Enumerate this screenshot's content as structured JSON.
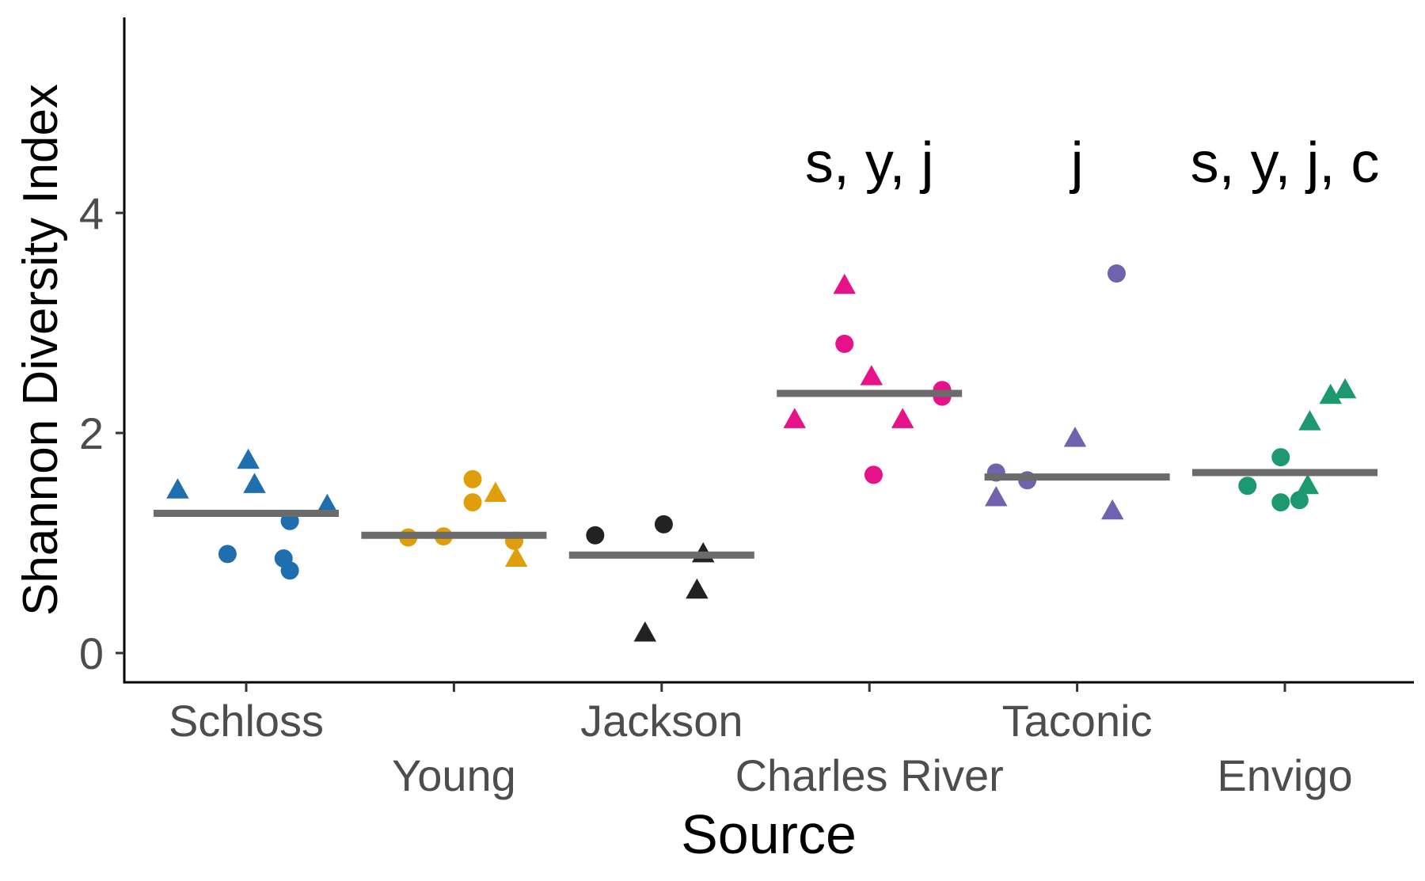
{
  "chart_data": {
    "type": "scatter",
    "xlabel": "Source",
    "ylabel": "Shannon Diversity Index",
    "ylim": [
      -0.25,
      5.75
    ],
    "yticks": [
      0,
      2,
      4
    ],
    "grid": false,
    "legend": "none",
    "marker_shapes": {
      "circle": "circle",
      "triangle": "triangle"
    },
    "categories": [
      "Schloss",
      "Young",
      "Jackson",
      "Charles River",
      "Taconic",
      "Envigo"
    ],
    "groups": [
      {
        "name": "Schloss",
        "color": "#1f6fb0",
        "median": 1.27,
        "annotation": "",
        "points": [
          {
            "x": -0.33,
            "y": 1.48,
            "shape": "triangle"
          },
          {
            "x": 0.01,
            "y": 1.75,
            "shape": "triangle"
          },
          {
            "x": 0.04,
            "y": 1.53,
            "shape": "triangle"
          },
          {
            "x": 0.39,
            "y": 1.34,
            "shape": "triangle"
          },
          {
            "x": -0.09,
            "y": 0.9,
            "shape": "circle"
          },
          {
            "x": 0.21,
            "y": 0.75,
            "shape": "circle"
          },
          {
            "x": 0.18,
            "y": 0.86,
            "shape": "circle"
          },
          {
            "x": 0.21,
            "y": 1.2,
            "shape": "circle"
          }
        ]
      },
      {
        "name": "Young",
        "color": "#e09f0a",
        "median": 1.07,
        "annotation": "",
        "points": [
          {
            "x": 0.09,
            "y": 1.58,
            "shape": "circle"
          },
          {
            "x": 0.09,
            "y": 1.37,
            "shape": "circle"
          },
          {
            "x": -0.22,
            "y": 1.05,
            "shape": "circle"
          },
          {
            "x": -0.05,
            "y": 1.06,
            "shape": "circle"
          },
          {
            "x": 0.29,
            "y": 1.02,
            "shape": "circle"
          },
          {
            "x": 0.2,
            "y": 1.45,
            "shape": "triangle"
          },
          {
            "x": 0.3,
            "y": 0.86,
            "shape": "triangle"
          }
        ]
      },
      {
        "name": "Jackson",
        "color": "#222222",
        "median": 0.89,
        "annotation": "",
        "points": [
          {
            "x": -0.32,
            "y": 1.07,
            "shape": "circle"
          },
          {
            "x": 0.01,
            "y": 1.17,
            "shape": "circle"
          },
          {
            "x": 0.2,
            "y": 0.9,
            "shape": "triangle"
          },
          {
            "x": 0.17,
            "y": 0.57,
            "shape": "triangle"
          },
          {
            "x": -0.08,
            "y": 0.18,
            "shape": "triangle"
          }
        ]
      },
      {
        "name": "Charles River",
        "color": "#e7118a",
        "median": 2.36,
        "annotation": "s, y, j",
        "points": [
          {
            "x": -0.36,
            "y": 2.12,
            "shape": "triangle"
          },
          {
            "x": -0.12,
            "y": 3.34,
            "shape": "triangle"
          },
          {
            "x": 0.01,
            "y": 2.51,
            "shape": "triangle"
          },
          {
            "x": 0.16,
            "y": 2.12,
            "shape": "triangle"
          },
          {
            "x": -0.12,
            "y": 2.81,
            "shape": "circle"
          },
          {
            "x": 0.02,
            "y": 1.62,
            "shape": "circle"
          },
          {
            "x": 0.35,
            "y": 2.39,
            "shape": "circle"
          },
          {
            "x": 0.35,
            "y": 2.33,
            "shape": "circle"
          }
        ]
      },
      {
        "name": "Taconic",
        "color": "#7062ac",
        "median": 1.6,
        "annotation": "j",
        "points": [
          {
            "x": -0.39,
            "y": 1.64,
            "shape": "circle"
          },
          {
            "x": -0.24,
            "y": 1.57,
            "shape": "circle"
          },
          {
            "x": 0.19,
            "y": 3.45,
            "shape": "circle"
          },
          {
            "x": -0.39,
            "y": 1.41,
            "shape": "triangle"
          },
          {
            "x": -0.01,
            "y": 1.95,
            "shape": "triangle"
          },
          {
            "x": 0.17,
            "y": 1.29,
            "shape": "triangle"
          }
        ]
      },
      {
        "name": "Envigo",
        "color": "#1e9870",
        "median": 1.64,
        "annotation": "s, y, j, c",
        "points": [
          {
            "x": -0.18,
            "y": 1.52,
            "shape": "circle"
          },
          {
            "x": -0.02,
            "y": 1.78,
            "shape": "circle"
          },
          {
            "x": -0.02,
            "y": 1.37,
            "shape": "circle"
          },
          {
            "x": 0.07,
            "y": 1.39,
            "shape": "circle"
          },
          {
            "x": 0.11,
            "y": 1.52,
            "shape": "triangle"
          },
          {
            "x": 0.12,
            "y": 2.1,
            "shape": "triangle"
          },
          {
            "x": 0.22,
            "y": 2.34,
            "shape": "triangle"
          },
          {
            "x": 0.29,
            "y": 2.39,
            "shape": "triangle"
          }
        ]
      }
    ]
  }
}
